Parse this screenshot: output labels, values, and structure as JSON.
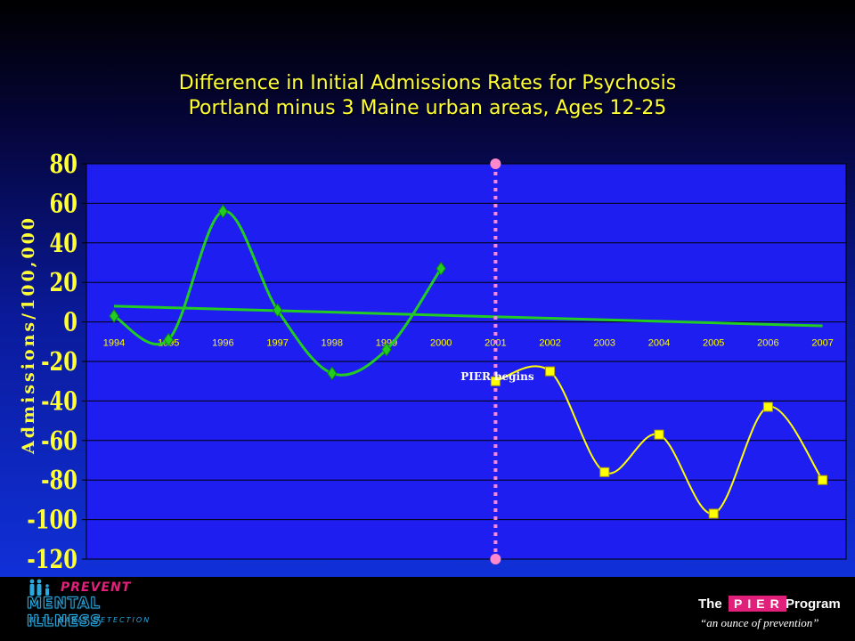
{
  "title_line1": "Difference in Initial Admissions Rates for Psychosis",
  "title_line2": "Portland minus 3 Maine urban areas, Ages 12-25",
  "chart_data": {
    "type": "line",
    "ylabel": "Admissions/100,000",
    "xlabel": "",
    "ylim": [
      -120,
      80
    ],
    "yticks": [
      80,
      60,
      40,
      20,
      0,
      -20,
      -40,
      -60,
      -80,
      -100,
      -120
    ],
    "categories": [
      "1994",
      "1995",
      "1996",
      "1997",
      "1998",
      "1999",
      "2000",
      "2001",
      "2002",
      "2003",
      "2004",
      "2005",
      "2006",
      "2007"
    ],
    "series": [
      {
        "name": "",
        "color": "#22cc22",
        "marker": "diamond",
        "x": [
          "1994",
          "1995",
          "1996",
          "1997",
          "1998",
          "1999",
          "2000"
        ],
        "values": [
          3,
          -9,
          56,
          6,
          -26,
          -14,
          27
        ]
      },
      {
        "name": "",
        "color": "#ffff00",
        "marker": "square",
        "x": [
          "2001",
          "2002",
          "2003",
          "2004",
          "2005",
          "2006",
          "2007"
        ],
        "values": [
          -30,
          -25,
          -76,
          -57,
          -97,
          -43,
          -80
        ]
      }
    ],
    "trendline": {
      "color": "#22cc22",
      "from": {
        "x": "1994",
        "y": 8
      },
      "to": {
        "x": "2007",
        "y": -2
      }
    },
    "annotation": {
      "text": "PIER begins",
      "x": "2001",
      "y": -28
    },
    "divider": {
      "x": "2001",
      "color": "#ff88cc"
    },
    "grid": true,
    "legend": "none"
  },
  "footer": {
    "left_logo": {
      "line1": "PREVENT",
      "line2": "MENTAL ILLNESS",
      "line3": "WITH EARLY DETECTION"
    },
    "right_logo": {
      "the": "The",
      "pier": "PIER",
      "program": "Program",
      "tagline": "“an ounce of prevention”"
    }
  },
  "colors": {
    "title": "#ffff33",
    "plot_bg": "#1e1ef0",
    "grid": "#000000",
    "pink": "#e0207a",
    "blue": "#2aa8e0"
  }
}
